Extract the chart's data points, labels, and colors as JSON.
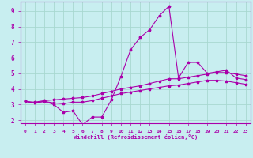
{
  "xlabel": "Windchill (Refroidissement éolien,°C)",
  "bg_color": "#c8eef0",
  "grid_color": "#a8d8d0",
  "line_color": "#aa00aa",
  "xlabel_bg": "#8800aa",
  "xlim": [
    -0.5,
    23.5
  ],
  "ylim": [
    1.8,
    9.6
  ],
  "xticks": [
    0,
    1,
    2,
    3,
    4,
    5,
    6,
    7,
    8,
    9,
    10,
    11,
    12,
    13,
    14,
    15,
    16,
    17,
    18,
    19,
    20,
    21,
    22,
    23
  ],
  "yticks": [
    2,
    3,
    4,
    5,
    6,
    7,
    8,
    9
  ],
  "line1_x": [
    0,
    1,
    2,
    3,
    4,
    5,
    6,
    7,
    8,
    9,
    10,
    11,
    12,
    13,
    14,
    15,
    16,
    17,
    18,
    19,
    20,
    21,
    22,
    23
  ],
  "line1_y": [
    3.2,
    3.1,
    3.2,
    3.0,
    2.5,
    2.6,
    1.7,
    2.2,
    2.2,
    3.3,
    4.8,
    6.5,
    7.3,
    7.8,
    8.7,
    9.3,
    4.7,
    5.7,
    5.7,
    5.0,
    5.1,
    5.2,
    4.7,
    4.6
  ],
  "line2_x": [
    0,
    1,
    2,
    3,
    4,
    5,
    6,
    7,
    8,
    9,
    10,
    11,
    12,
    13,
    14,
    15,
    16,
    17,
    18,
    19,
    20,
    21,
    22,
    23
  ],
  "line2_y": [
    3.2,
    3.15,
    3.25,
    3.3,
    3.35,
    3.4,
    3.45,
    3.55,
    3.7,
    3.85,
    4.0,
    4.1,
    4.2,
    4.35,
    4.5,
    4.65,
    4.65,
    4.75,
    4.85,
    4.95,
    5.05,
    5.05,
    4.95,
    4.85
  ],
  "line3_x": [
    0,
    1,
    2,
    3,
    4,
    5,
    6,
    7,
    8,
    9,
    10,
    11,
    12,
    13,
    14,
    15,
    16,
    17,
    18,
    19,
    20,
    21,
    22,
    23
  ],
  "line3_y": [
    3.2,
    3.1,
    3.2,
    3.1,
    3.05,
    3.15,
    3.15,
    3.25,
    3.4,
    3.55,
    3.7,
    3.8,
    3.9,
    4.0,
    4.1,
    4.2,
    4.25,
    4.35,
    4.45,
    4.55,
    4.55,
    4.5,
    4.4,
    4.3
  ]
}
